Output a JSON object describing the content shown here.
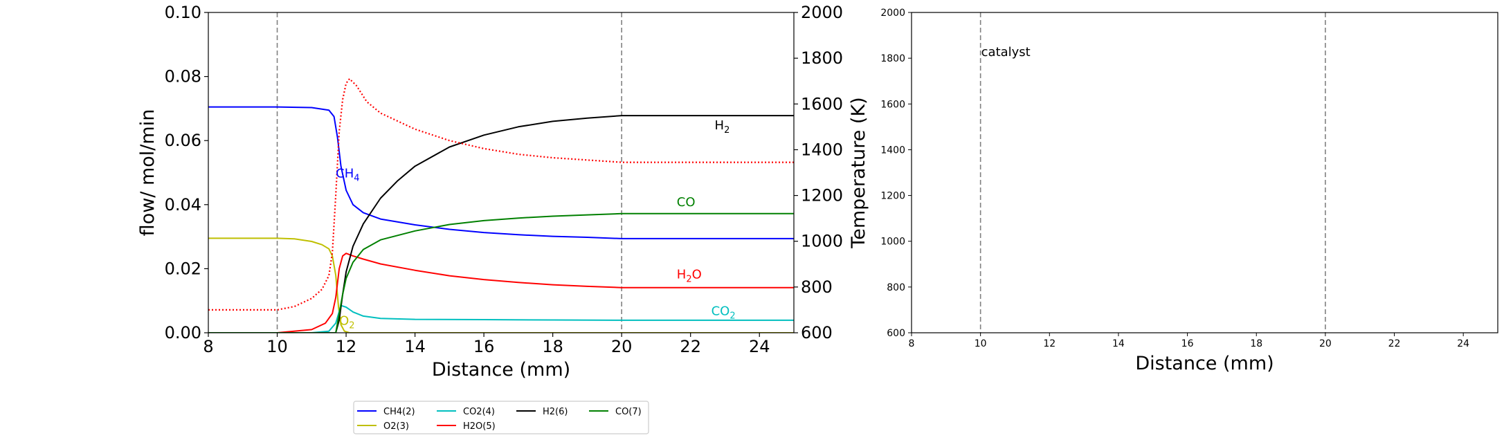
{
  "chart_data": [
    {
      "type": "line",
      "title": "",
      "xlabel": "Distance (mm)",
      "ylabel": "flow/ mol/min",
      "y2label": "Temperature (K)",
      "xlim": [
        8,
        25
      ],
      "ylim": [
        0,
        0.1
      ],
      "y2lim": [
        600,
        2000
      ],
      "xticks": [
        "8",
        "10",
        "12",
        "14",
        "16",
        "18",
        "20",
        "22",
        "24"
      ],
      "yticks": [
        "0.00",
        "0.02",
        "0.04",
        "0.06",
        "0.08",
        "0.10"
      ],
      "y2ticks": [
        "600",
        "800",
        "1000",
        "1200",
        "1400",
        "1600",
        "1800",
        "2000"
      ],
      "vlines": [
        10,
        20
      ],
      "grid": false,
      "series": [
        {
          "name": "CH4(2)",
          "color": "#0000ff",
          "label": {
            "base": "CH",
            "sub": "4",
            "x": 11.7,
            "y": 0.0485
          },
          "points": [
            [
              8,
              0.0705
            ],
            [
              10,
              0.0705
            ],
            [
              11,
              0.0703
            ],
            [
              11.5,
              0.0695
            ],
            [
              11.65,
              0.0675
            ],
            [
              11.75,
              0.061
            ],
            [
              11.85,
              0.052
            ],
            [
              12.0,
              0.0445
            ],
            [
              12.2,
              0.04
            ],
            [
              12.5,
              0.0375
            ],
            [
              13,
              0.0355
            ],
            [
              14,
              0.0337
            ],
            [
              15,
              0.0323
            ],
            [
              16,
              0.0313
            ],
            [
              17,
              0.0306
            ],
            [
              18,
              0.0301
            ],
            [
              19,
              0.0298
            ],
            [
              20,
              0.0294
            ],
            [
              25,
              0.0294
            ]
          ]
        },
        {
          "name": "O2(3)",
          "color": "#bfbf00",
          "label": {
            "base": "O",
            "sub": "2",
            "x": 11.8,
            "y": 0.0025
          },
          "points": [
            [
              8,
              0.0295
            ],
            [
              10,
              0.0295
            ],
            [
              10.5,
              0.0293
            ],
            [
              11,
              0.0285
            ],
            [
              11.3,
              0.0275
            ],
            [
              11.5,
              0.0262
            ],
            [
              11.6,
              0.024
            ],
            [
              11.7,
              0.018
            ],
            [
              11.78,
              0.008
            ],
            [
              11.85,
              0.0025
            ],
            [
              11.95,
              0.0005
            ],
            [
              12.1,
              0.0
            ],
            [
              25,
              0.0
            ]
          ]
        },
        {
          "name": "CO2(4)",
          "color": "#00bfbf",
          "label": {
            "base": "CO",
            "sub": "2",
            "x": 22.6,
            "y": 0.0055
          },
          "points": [
            [
              8,
              0.0
            ],
            [
              11,
              0.0
            ],
            [
              11.5,
              0.0005
            ],
            [
              11.7,
              0.003
            ],
            [
              11.85,
              0.0085
            ],
            [
              12.0,
              0.008
            ],
            [
              12.2,
              0.0065
            ],
            [
              12.5,
              0.0052
            ],
            [
              13,
              0.0045
            ],
            [
              14,
              0.0042
            ],
            [
              16,
              0.0041
            ],
            [
              18,
              0.004
            ],
            [
              20,
              0.0039
            ],
            [
              25,
              0.0039
            ]
          ]
        },
        {
          "name": "H2O(5)",
          "color": "#ff0000",
          "label": {
            "base": "H",
            "sub": "2",
            "tail": "O",
            "x": 21.6,
            "y": 0.017
          },
          "points": [
            [
              8,
              0.0
            ],
            [
              10,
              0.0
            ],
            [
              11,
              0.001
            ],
            [
              11.4,
              0.003
            ],
            [
              11.6,
              0.006
            ],
            [
              11.7,
              0.011
            ],
            [
              11.8,
              0.02
            ],
            [
              11.9,
              0.024
            ],
            [
              12.0,
              0.0248
            ],
            [
              12.2,
              0.024
            ],
            [
              12.5,
              0.023
            ],
            [
              13,
              0.0215
            ],
            [
              14,
              0.0195
            ],
            [
              15,
              0.0178
            ],
            [
              16,
              0.0166
            ],
            [
              17,
              0.0157
            ],
            [
              18,
              0.015
            ],
            [
              19,
              0.0145
            ],
            [
              20,
              0.0141
            ],
            [
              25,
              0.0141
            ]
          ]
        },
        {
          "name": "H2(6)",
          "color": "#000000",
          "label": {
            "base": "H",
            "sub": "2",
            "x": 22.7,
            "y": 0.0635
          },
          "points": [
            [
              8,
              0.0
            ],
            [
              11.7,
              0.0
            ],
            [
              11.8,
              0.004
            ],
            [
              11.9,
              0.012
            ],
            [
              12.0,
              0.019
            ],
            [
              12.2,
              0.027
            ],
            [
              12.5,
              0.034
            ],
            [
              13,
              0.042
            ],
            [
              13.5,
              0.0475
            ],
            [
              14,
              0.052
            ],
            [
              15,
              0.058
            ],
            [
              16,
              0.0617
            ],
            [
              17,
              0.0643
            ],
            [
              18,
              0.066
            ],
            [
              19,
              0.067
            ],
            [
              20,
              0.0678
            ],
            [
              25,
              0.0678
            ]
          ]
        },
        {
          "name": "CO(7)",
          "color": "#008000",
          "label": {
            "base": "CO",
            "sub": "",
            "x": 21.6,
            "y": 0.0395
          },
          "points": [
            [
              8,
              0.0
            ],
            [
              11.7,
              0.0
            ],
            [
              11.8,
              0.006
            ],
            [
              11.9,
              0.012
            ],
            [
              12.0,
              0.017
            ],
            [
              12.2,
              0.022
            ],
            [
              12.5,
              0.026
            ],
            [
              13,
              0.029
            ],
            [
              14,
              0.0318
            ],
            [
              15,
              0.0338
            ],
            [
              16,
              0.035
            ],
            [
              17,
              0.0358
            ],
            [
              18,
              0.0364
            ],
            [
              19,
              0.0368
            ],
            [
              20,
              0.0372
            ],
            [
              25,
              0.0372
            ]
          ]
        },
        {
          "name": "",
          "color": "#ff0000",
          "dashed": true,
          "axis": "y2",
          "points": [
            [
              8,
              700
            ],
            [
              10,
              700
            ],
            [
              10.5,
              715
            ],
            [
              11,
              750
            ],
            [
              11.3,
              790
            ],
            [
              11.5,
              850
            ],
            [
              11.6,
              950
            ],
            [
              11.7,
              1200
            ],
            [
              11.8,
              1480
            ],
            [
              11.9,
              1620
            ],
            [
              12.0,
              1690
            ],
            [
              12.1,
              1710
            ],
            [
              12.3,
              1680
            ],
            [
              12.6,
              1610
            ],
            [
              13,
              1560
            ],
            [
              14,
              1490
            ],
            [
              15,
              1440
            ],
            [
              16,
              1405
            ],
            [
              17,
              1380
            ],
            [
              18,
              1365
            ],
            [
              19,
              1355
            ],
            [
              20,
              1345
            ],
            [
              25,
              1345
            ]
          ]
        }
      ],
      "legend": {
        "placement": "lower-center",
        "ncol": 4,
        "entries": [
          {
            "name": "CH4(2)",
            "color": "#0000ff"
          },
          {
            "name": "CO2(4)",
            "color": "#00bfbf"
          },
          {
            "name": "H2(6)",
            "color": "#000000"
          },
          {
            "name": "CO(7)",
            "color": "#008000"
          },
          {
            "name": "O2(3)",
            "color": "#bfbf00"
          },
          {
            "name": "H2O(5)",
            "color": "#ff0000"
          }
        ]
      }
    },
    {
      "type": "line",
      "title": "",
      "xlabel": "Distance (mm)",
      "ylabel": "",
      "xlim": [
        8,
        25
      ],
      "ylim": [
        600,
        2000
      ],
      "xticks": [
        "8",
        "10",
        "12",
        "14",
        "16",
        "18",
        "20",
        "22",
        "24"
      ],
      "yticks": [
        "600",
        "800",
        "1000",
        "1200",
        "1400",
        "1600",
        "1800",
        "2000"
      ],
      "vlines": [
        10,
        20
      ],
      "annotation": {
        "text": "catalyst",
        "x": 10,
        "y": 1810
      },
      "grid": false,
      "series": []
    }
  ]
}
